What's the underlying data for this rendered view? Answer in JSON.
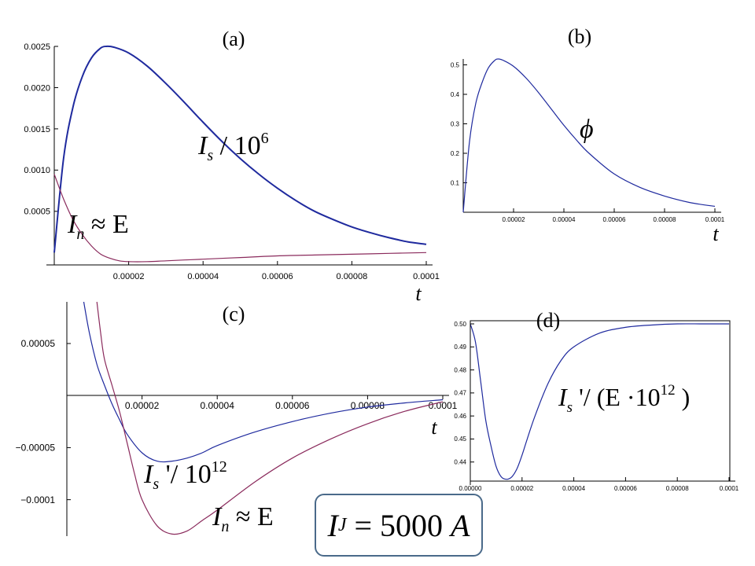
{
  "colors": {
    "blue": "#1f2a9e",
    "purple": "#8a2a5c",
    "axis": "#000000",
    "box_border": "#4a6a8a"
  },
  "current_box": {
    "I": "I",
    "sub": "J",
    "eq": "= 5000",
    "unit": "A"
  },
  "chart_data": [
    {
      "id": "a",
      "type": "line",
      "panel_label": "(a)",
      "xlabel": "t",
      "xlim": [
        0,
        0.0001
      ],
      "ylim": [
        -0.00015,
        0.0025
      ],
      "x_ticks": [
        2e-05,
        4e-05,
        6e-05,
        8e-05,
        0.0001
      ],
      "x_tick_labels": [
        "0.00002",
        "0.00004",
        "0.00006",
        "0.00008",
        "0.0001"
      ],
      "y_ticks": [
        0.0005,
        0.001,
        0.0015,
        0.002,
        0.0025
      ],
      "y_tick_labels": [
        "0.0005",
        "0.0010",
        "0.0015",
        "0.0020",
        "0.0025"
      ],
      "series": [
        {
          "color": "#1f2a9e",
          "annotation": {
            "main": "I",
            "sub": "s",
            "rest": " / 10",
            "sup": "6"
          },
          "x": [
            0,
            2.5e-06,
            5e-06,
            7.5e-06,
            1e-05,
            1.25e-05,
            1.4e-05,
            1.6e-05,
            2e-05,
            2.5e-05,
            3e-05,
            3.5e-05,
            4e-05,
            4.5e-05,
            5e-05,
            5.5e-05,
            6e-05,
            6.5e-05,
            7e-05,
            7.5e-05,
            8e-05,
            8.5e-05,
            9e-05,
            9.5e-05,
            0.0001
          ],
          "y": [
            0,
            0.00114,
            0.00176,
            0.00213,
            0.00236,
            0.00248,
            0.0025,
            0.00249,
            0.00242,
            0.00226,
            0.00205,
            0.00182,
            0.00158,
            0.00135,
            0.00114,
            0.00095,
            0.00078,
            0.00063,
            0.0005,
            0.0004,
            0.00031,
            0.00024,
            0.00018,
            0.00013,
            0.0001
          ]
        },
        {
          "color": "#8a2a5c",
          "annotation": {
            "main": "I",
            "sub": "n",
            "rest": " ≈ E",
            "sup": ""
          },
          "x": [
            0,
            2.5e-06,
            5e-06,
            7.5e-06,
            1e-05,
            1.25e-05,
            1.5e-05,
            1.75e-05,
            2e-05,
            2.5e-05,
            3e-05,
            3.5e-05,
            4e-05,
            5e-05,
            6e-05,
            7e-05,
            8e-05,
            9e-05,
            0.0001
          ],
          "y": [
            0.00095,
            0.00065,
            0.0004,
            0.00022,
            8e-05,
            -2e-05,
            -7e-05,
            -0.0001,
            -0.00011,
            -0.00011,
            -0.0001,
            -9e-05,
            -8e-05,
            -6e-05,
            -4e-05,
            -3e-05,
            -2e-05,
            -1e-05,
            0
          ]
        }
      ]
    },
    {
      "id": "b",
      "type": "line",
      "panel_label": "(b)",
      "xlabel": "t",
      "xlim": [
        0,
        0.0001
      ],
      "ylim": [
        0,
        0.52
      ],
      "x_ticks": [
        2e-05,
        4e-05,
        6e-05,
        8e-05,
        0.0001
      ],
      "x_tick_labels": [
        "0.00002",
        "0.00004",
        "0.00006",
        "0.00008",
        "0.0001"
      ],
      "y_ticks": [
        0.1,
        0.2,
        0.3,
        0.4,
        0.5
      ],
      "y_tick_labels": [
        "0.1",
        "0.2",
        "0.3",
        "0.4",
        "0.5"
      ],
      "series": [
        {
          "color": "#1f2a9e",
          "annotation": {
            "main": "ϕ",
            "sub": "",
            "rest": "",
            "sup": ""
          },
          "x": [
            0,
            2.5e-06,
            5e-06,
            7.5e-06,
            1e-05,
            1.25e-05,
            1.4e-05,
            1.6e-05,
            2e-05,
            2.5e-05,
            3e-05,
            3.5e-05,
            4e-05,
            4.5e-05,
            5e-05,
            6e-05,
            7e-05,
            8e-05,
            9e-05,
            0.0001
          ],
          "y": [
            0,
            0.24,
            0.37,
            0.44,
            0.49,
            0.515,
            0.52,
            0.515,
            0.495,
            0.455,
            0.405,
            0.35,
            0.295,
            0.245,
            0.2,
            0.13,
            0.085,
            0.055,
            0.033,
            0.02
          ]
        }
      ]
    },
    {
      "id": "c",
      "type": "line",
      "panel_label": "(c)",
      "xlabel": "t",
      "xlim": [
        0,
        0.0001
      ],
      "ylim": [
        -0.000135,
        9e-05
      ],
      "x_ticks": [
        2e-05,
        4e-05,
        6e-05,
        8e-05,
        0.0001
      ],
      "x_tick_labels": [
        "0.00002",
        "0.00004",
        "0.00006",
        "0.00008",
        "0.0001"
      ],
      "y_ticks": [
        5e-05,
        -5e-05,
        -0.0001
      ],
      "y_tick_labels": [
        "0.00005",
        "−0.00005",
        "−0.0001"
      ],
      "series": [
        {
          "color": "#1f2a9e",
          "annotation": {
            "main": "I",
            "sub": "s",
            "rest": " '/ 10",
            "sup": "12"
          },
          "x": [
            4.5e-06,
            6e-06,
            8e-06,
            1e-05,
            1.2e-05,
            1.4e-05,
            1.6e-05,
            2e-05,
            2.4e-05,
            2.8e-05,
            3.2e-05,
            3.6e-05,
            4e-05,
            5e-05,
            6e-05,
            7e-05,
            8e-05,
            9e-05,
            0.0001
          ],
          "y": [
            9e-05,
            6e-05,
            3e-05,
            1e-05,
            -8e-06,
            -2.3e-05,
            -3.7e-05,
            -5.5e-05,
            -6.3e-05,
            -6.3e-05,
            -6e-05,
            -5.5e-05,
            -4.8e-05,
            -3.5e-05,
            -2.5e-05,
            -1.7e-05,
            -1.1e-05,
            -7e-06,
            -4e-06
          ]
        },
        {
          "color": "#8a2a5c",
          "annotation": {
            "main": "I",
            "sub": "n",
            "rest": " ≈ E",
            "sup": ""
          },
          "x": [
            8e-06,
            9e-06,
            1e-05,
            1.2e-05,
            1.4e-05,
            1.6e-05,
            1.8e-05,
            2e-05,
            2.4e-05,
            2.8e-05,
            3.2e-05,
            3.6e-05,
            4e-05,
            5e-05,
            6e-05,
            7e-05,
            8e-05,
            9e-05,
            0.0001
          ],
          "y": [
            9e-05,
            6e-05,
            3.5e-05,
            1e-05,
            -1.5e-05,
            -4.5e-05,
            -7.5e-05,
            -0.0001,
            -0.000125,
            -0.000133,
            -0.00013,
            -0.00012,
            -0.00011,
            -8.3e-05,
            -6e-05,
            -4.2e-05,
            -2.7e-05,
            -1.5e-05,
            -6e-06
          ]
        }
      ]
    },
    {
      "id": "d",
      "type": "line",
      "panel_label": "(d)",
      "xlabel": "",
      "xlim": [
        0,
        0.0001
      ],
      "ylim": [
        0.43,
        0.5
      ],
      "x_ticks": [
        0,
        2e-05,
        4e-05,
        6e-05,
        8e-05,
        0.0001
      ],
      "x_tick_labels": [
        "0.00000",
        "0.00002",
        "0.00004",
        "0.00006",
        "0.00008",
        "0.0001"
      ],
      "y_ticks": [
        0.44,
        0.45,
        0.46,
        0.47,
        0.48,
        0.49,
        0.5
      ],
      "y_tick_labels": [
        "0.44",
        "0.45",
        "0.46",
        "0.47",
        "0.48",
        "0.49",
        "0.50"
      ],
      "series": [
        {
          "color": "#1f2a9e",
          "annotation": {
            "main": "I",
            "sub": "s",
            "rest": " '/ (E ·10",
            "sup": "12",
            "after": ")"
          },
          "x": [
            0,
            2e-06,
            4e-06,
            6e-06,
            8e-06,
            1e-05,
            1.2e-05,
            1.4e-05,
            1.6e-05,
            1.8e-05,
            2e-05,
            2.2e-05,
            2.5e-05,
            3e-05,
            3.5e-05,
            4e-05,
            5e-05,
            6e-05,
            7e-05,
            8e-05,
            9e-05,
            0.0001
          ],
          "y": [
            0.5,
            0.492,
            0.475,
            0.458,
            0.447,
            0.438,
            0.4335,
            0.4325,
            0.4335,
            0.437,
            0.443,
            0.45,
            0.46,
            0.474,
            0.484,
            0.49,
            0.496,
            0.4985,
            0.4995,
            0.5,
            0.5,
            0.5
          ]
        }
      ]
    }
  ]
}
